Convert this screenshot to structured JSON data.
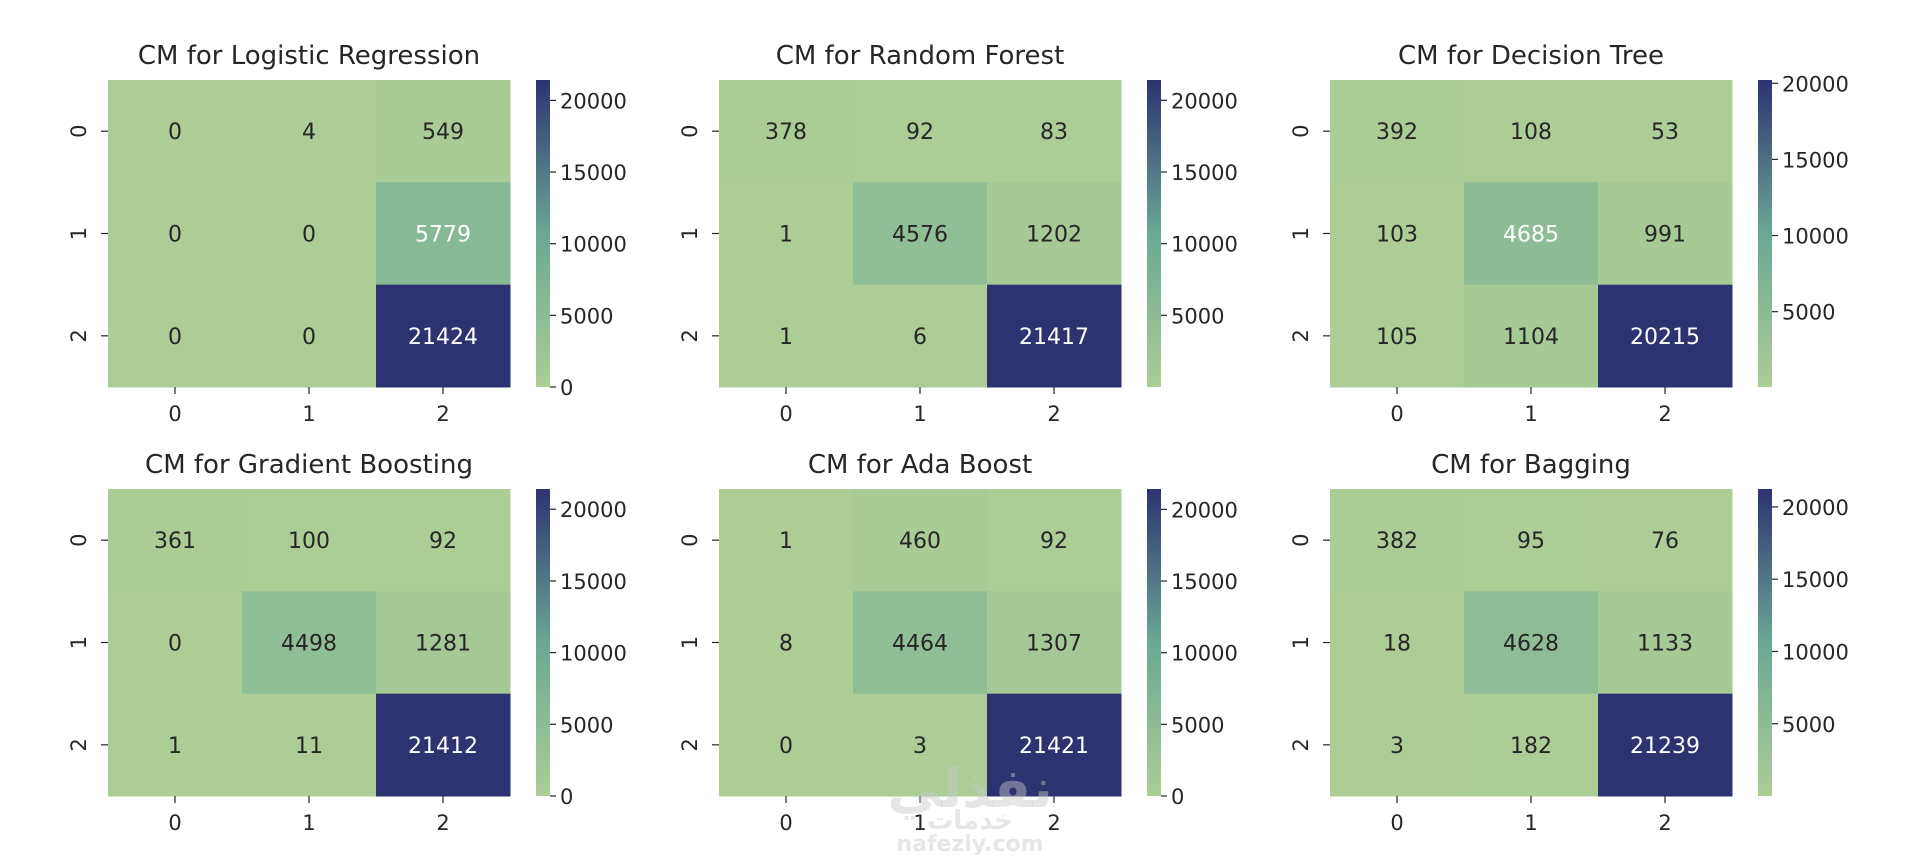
{
  "colors": {
    "low": "#acce96",
    "mid": "#6aa894",
    "high": "#2d3271",
    "text_dark": "#262626",
    "text_light": "#ffffff"
  },
  "watermark": {
    "logo": "نفذلي",
    "sub": "خدمات",
    "url": "nafezly.com"
  },
  "chart_data": [
    {
      "type": "heatmap",
      "title": "CM for Logistic Regression",
      "x_ticks": [
        "0",
        "1",
        "2"
      ],
      "y_ticks": [
        "0",
        "1",
        "2"
      ],
      "values": [
        [
          0,
          4,
          549
        ],
        [
          0,
          0,
          5779
        ],
        [
          0,
          0,
          21424
        ]
      ],
      "colorbar": {
        "range": [
          0,
          21424
        ],
        "ticks": [
          0,
          5000,
          10000,
          15000,
          20000
        ]
      },
      "grid": false
    },
    {
      "type": "heatmap",
      "title": "CM for Random Forest",
      "x_ticks": [
        "0",
        "1",
        "2"
      ],
      "y_ticks": [
        "0",
        "1",
        "2"
      ],
      "values": [
        [
          378,
          92,
          83
        ],
        [
          1,
          4576,
          1202
        ],
        [
          1,
          6,
          21417
        ]
      ],
      "colorbar": {
        "range": [
          1,
          21417
        ],
        "ticks": [
          5000,
          10000,
          15000,
          20000
        ]
      },
      "grid": false
    },
    {
      "type": "heatmap",
      "title": "CM for Decision Tree",
      "x_ticks": [
        "0",
        "1",
        "2"
      ],
      "y_ticks": [
        "0",
        "1",
        "2"
      ],
      "values": [
        [
          392,
          108,
          53
        ],
        [
          103,
          4685,
          991
        ],
        [
          105,
          1104,
          20215
        ]
      ],
      "colorbar": {
        "range": [
          53,
          20215
        ],
        "ticks": [
          5000,
          10000,
          15000,
          20000
        ]
      },
      "grid": false
    },
    {
      "type": "heatmap",
      "title": "CM for Gradient Boosting",
      "x_ticks": [
        "0",
        "1",
        "2"
      ],
      "y_ticks": [
        "0",
        "1",
        "2"
      ],
      "values": [
        [
          361,
          100,
          92
        ],
        [
          0,
          4498,
          1281
        ],
        [
          1,
          11,
          21412
        ]
      ],
      "colorbar": {
        "range": [
          0,
          21412
        ],
        "ticks": [
          0,
          5000,
          10000,
          15000,
          20000
        ]
      },
      "grid": false
    },
    {
      "type": "heatmap",
      "title": "CM for Ada Boost",
      "x_ticks": [
        "0",
        "1",
        "2"
      ],
      "y_ticks": [
        "0",
        "1",
        "2"
      ],
      "values": [
        [
          1,
          460,
          92
        ],
        [
          8,
          4464,
          1307
        ],
        [
          0,
          3,
          21421
        ]
      ],
      "colorbar": {
        "range": [
          0,
          21421
        ],
        "ticks": [
          0,
          5000,
          10000,
          15000,
          20000
        ]
      },
      "grid": false
    },
    {
      "type": "heatmap",
      "title": "CM for Bagging",
      "x_ticks": [
        "0",
        "1",
        "2"
      ],
      "y_ticks": [
        "0",
        "1",
        "2"
      ],
      "values": [
        [
          382,
          95,
          76
        ],
        [
          18,
          4628,
          1133
        ],
        [
          3,
          182,
          21239
        ]
      ],
      "colorbar": {
        "range": [
          3,
          21239
        ],
        "ticks": [
          5000,
          10000,
          15000,
          20000
        ]
      },
      "grid": false
    }
  ]
}
